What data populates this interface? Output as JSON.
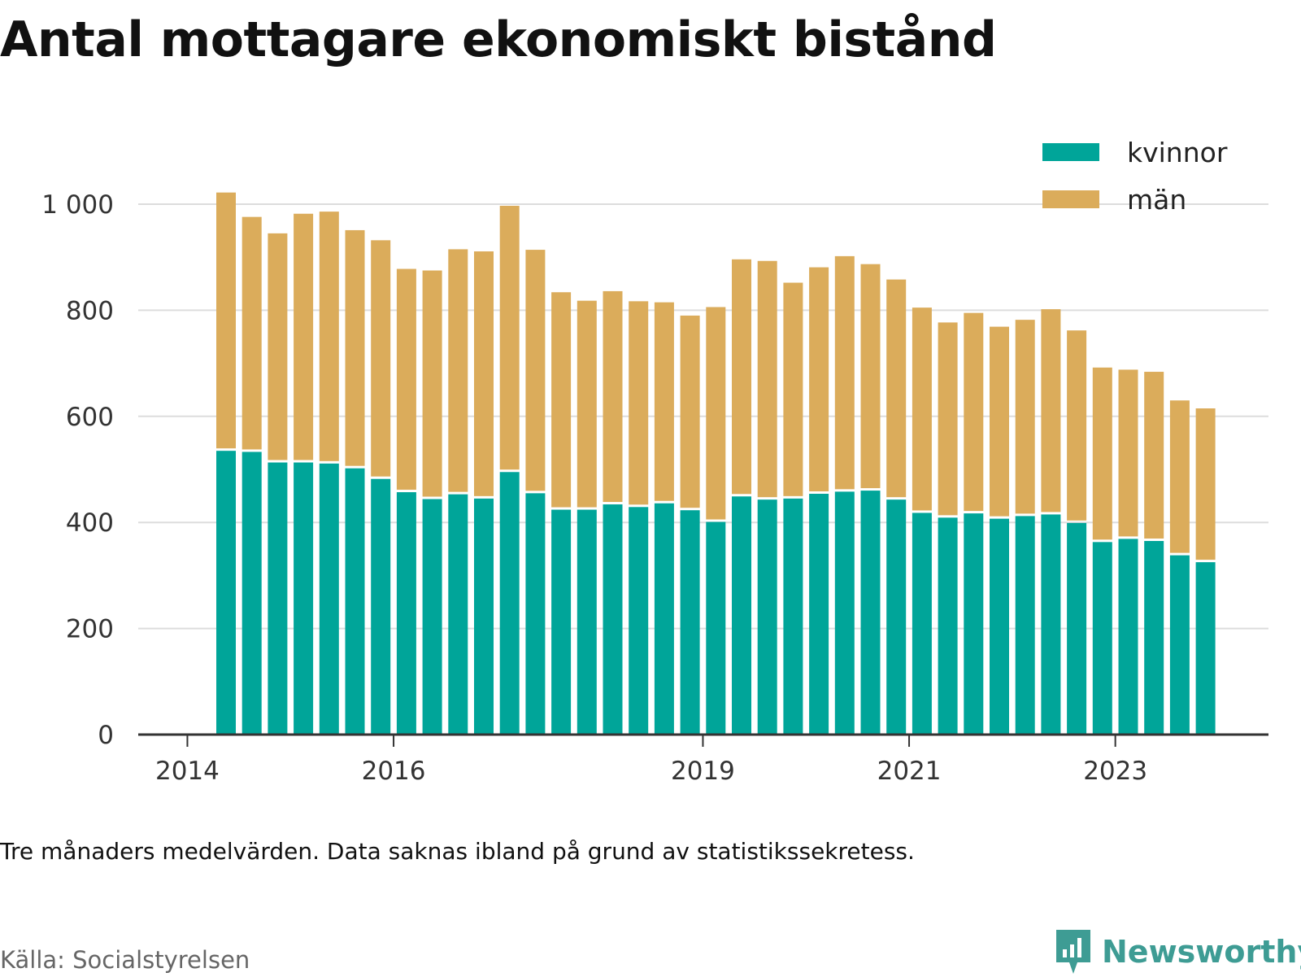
{
  "title": "Antal mottagare ekonomiskt bistånd",
  "note": "Tre månaders medelvärden. Data saknas ibland på grund av statistikssekretess.",
  "source": "Källa: Socialstyrelsen",
  "brand": {
    "name": "Newsworthy",
    "color": "#3e9c94",
    "icon": "bar-chart-speech-bubble-icon"
  },
  "colors": {
    "kvinnor": "#00a599",
    "man": "#dbac5b",
    "grid": "#dddddd",
    "axis": "#333333"
  },
  "chart_data": {
    "type": "bar",
    "stacked": true,
    "ylim": [
      0,
      1000
    ],
    "yticks": [
      0,
      200,
      400,
      600,
      800,
      1000
    ],
    "ytick_labels": [
      "0",
      "200",
      "400",
      "600",
      "800",
      "1 000"
    ],
    "xticks": [
      "2014",
      "2016",
      "2019",
      "2021",
      "2023"
    ],
    "grid": true,
    "legend_position": "top-right",
    "categories": [
      "2014Q2",
      "2014Q3",
      "2014Q4",
      "2015Q1",
      "2015Q2",
      "2015Q3",
      "2015Q4",
      "2016Q1",
      "2016Q2",
      "2016Q3",
      "2016Q4",
      "2017Q1",
      "2017Q2",
      "2017Q3",
      "2017Q4",
      "2018Q1",
      "2018Q2",
      "2018Q3",
      "2018Q4",
      "2019Q1",
      "2019Q2",
      "2019Q3",
      "2019Q4",
      "2020Q1",
      "2020Q2",
      "2020Q3",
      "2020Q4",
      "2021Q1",
      "2021Q2",
      "2021Q3",
      "2021Q4",
      "2022Q1",
      "2022Q2",
      "2022Q3",
      "2022Q4",
      "2023Q1",
      "2023Q2",
      "2023Q3",
      "2023Q4"
    ],
    "series": [
      {
        "name": "kvinnor",
        "values": [
          535,
          533,
          513,
          513,
          511,
          502,
          482,
          457,
          444,
          453,
          445,
          495,
          455,
          424,
          424,
          434,
          429,
          436,
          423,
          401,
          449,
          443,
          445,
          454,
          458,
          460,
          443,
          418,
          409,
          417,
          407,
          412,
          415,
          399,
          363,
          369,
          365,
          338,
          325
        ]
      },
      {
        "name": "män",
        "values": [
          487,
          443,
          432,
          469,
          475,
          449,
          450,
          421,
          431,
          462,
          466,
          502,
          459,
          410,
          394,
          402,
          388,
          379,
          367,
          405,
          447,
          450,
          407,
          427,
          444,
          427,
          415,
          387,
          368,
          378,
          362,
          370,
          387,
          363,
          329,
          319,
          319,
          292,
          290
        ]
      }
    ]
  }
}
